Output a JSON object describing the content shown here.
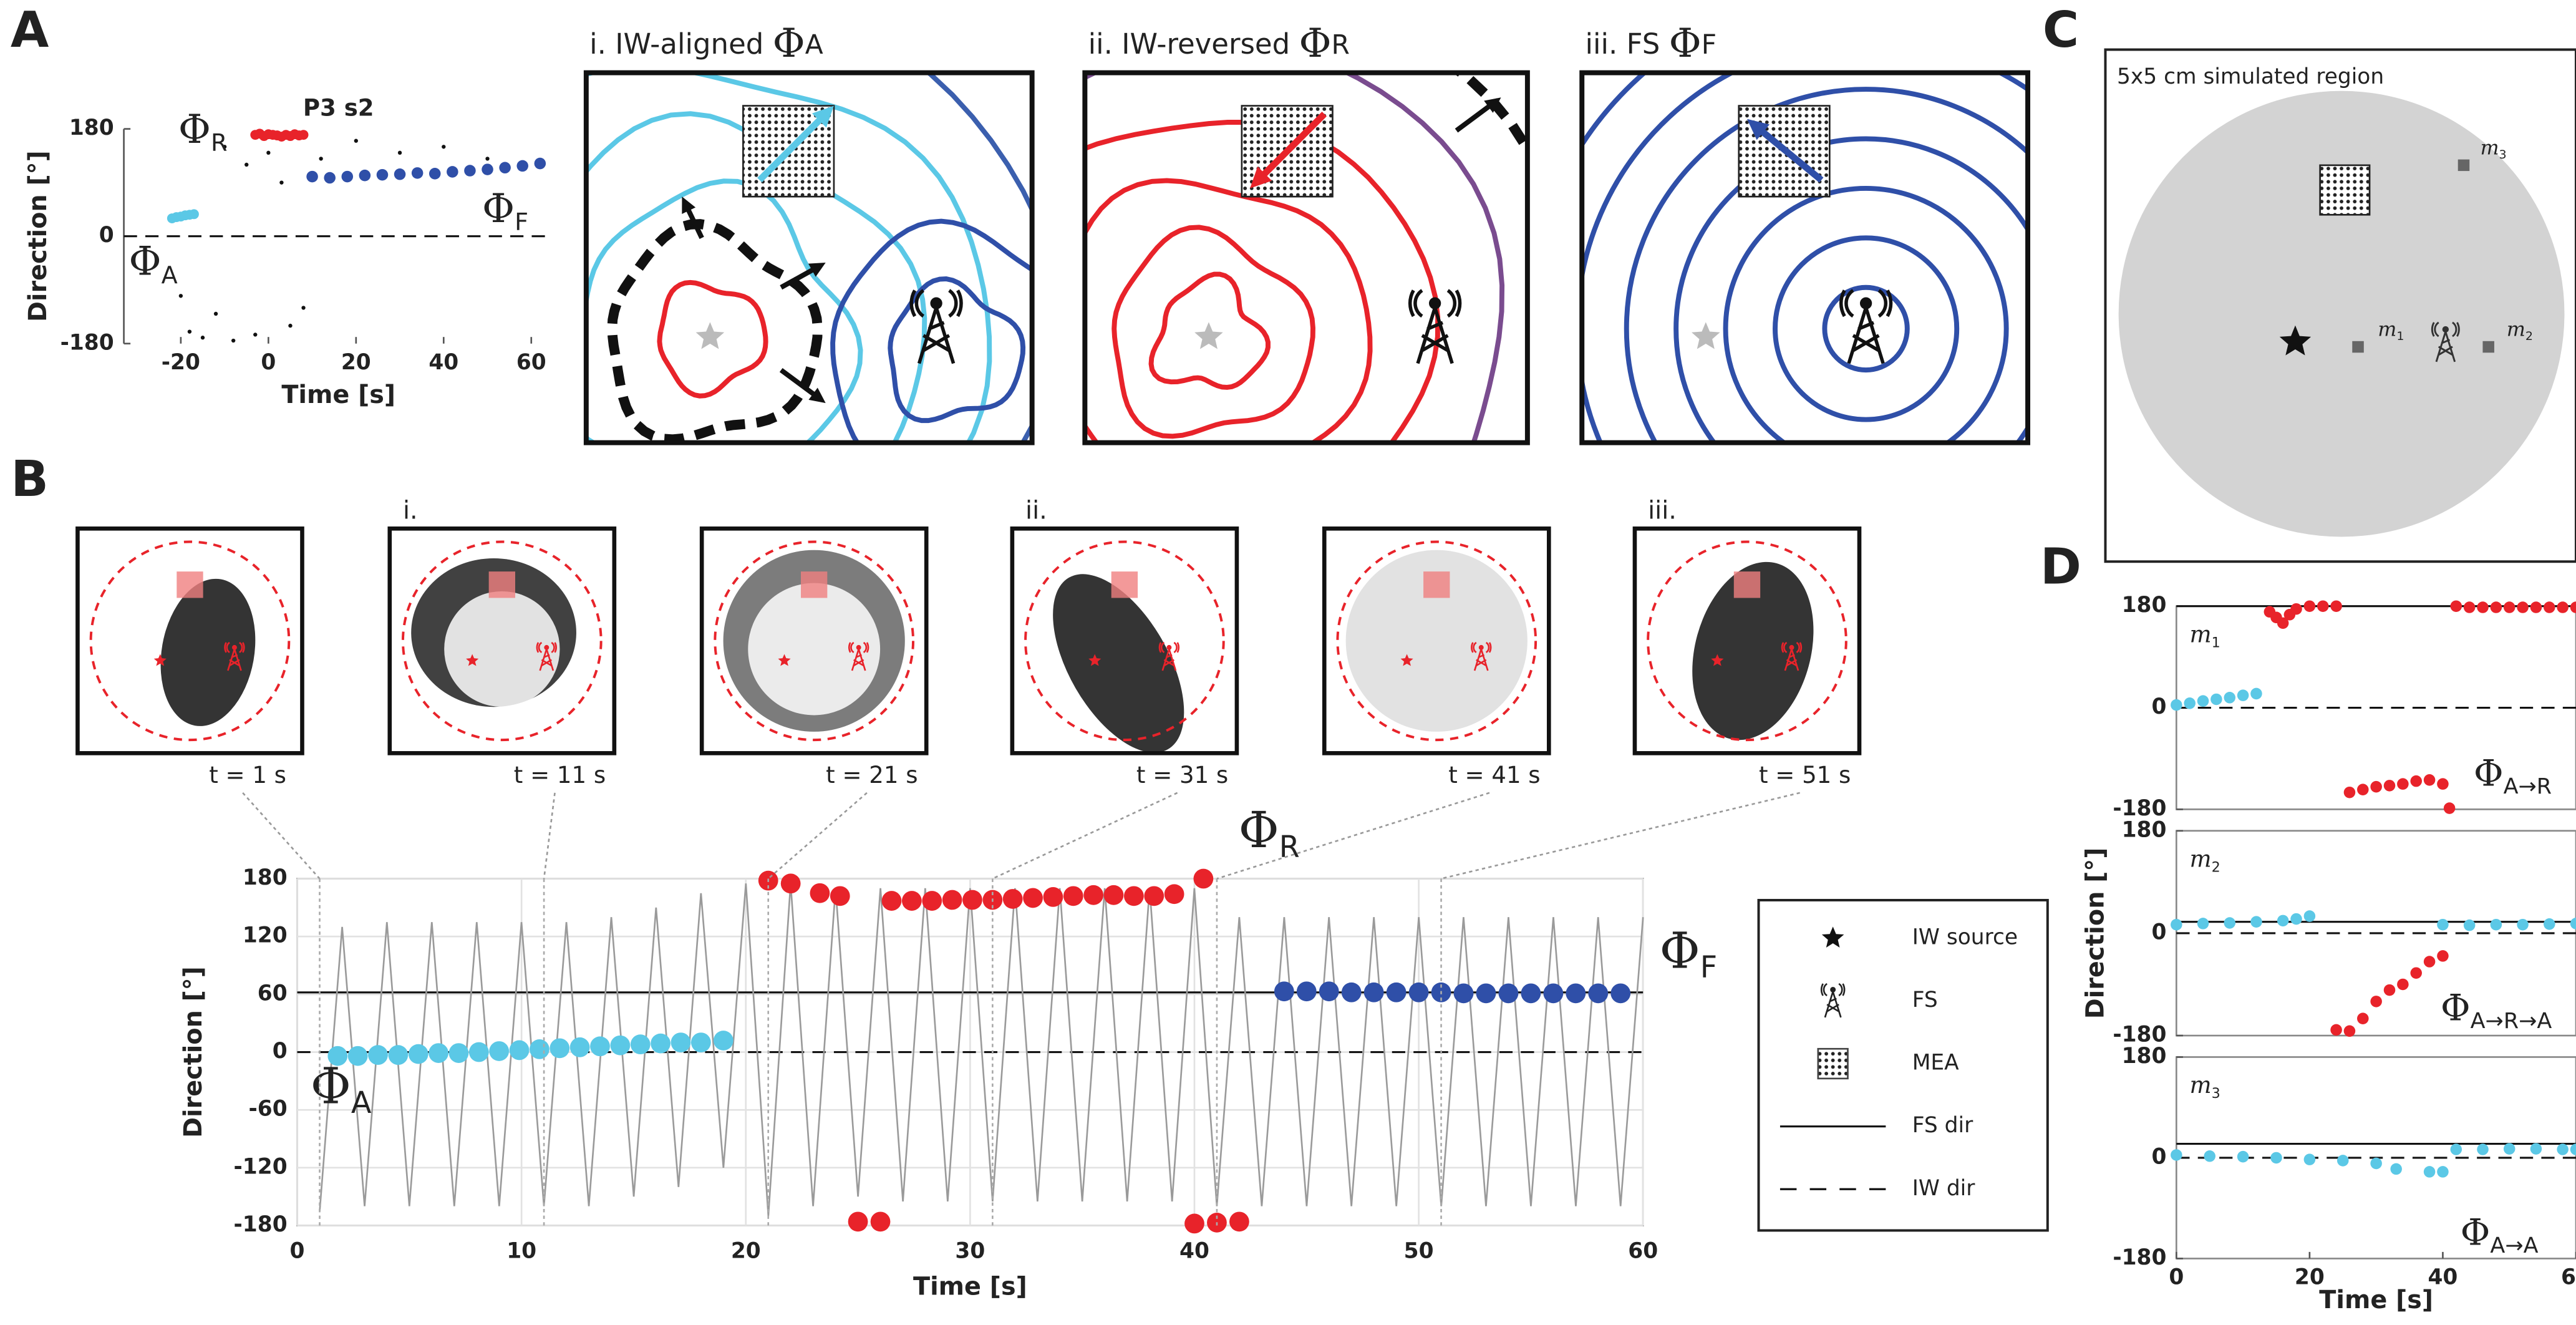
{
  "panel_labels": [
    "A",
    "B",
    "C",
    "D"
  ],
  "diagrams": [
    {
      "prefix": "i. IW-aligned ",
      "symbol": "Φ",
      "subscript": "A"
    },
    {
      "prefix": "ii. IW-reversed ",
      "symbol": "Φ",
      "subscript": "R"
    },
    {
      "prefix": "iii. FS ",
      "symbol": "Φ",
      "subscript": "F"
    }
  ],
  "region": {
    "title": "5x5 cm simulated region",
    "markers": [
      {
        "symbol": "m",
        "subscript": "1"
      },
      {
        "symbol": "m",
        "subscript": "2"
      },
      {
        "symbol": "m",
        "subscript": "3"
      }
    ]
  },
  "snapshots": {
    "headers": [
      "i.",
      "ii.",
      "iii."
    ],
    "times": [
      "t = 1 s",
      "t = 11 s",
      "t = 21 s",
      "t = 31 s",
      "t = 41 s",
      "t = 51 s"
    ]
  },
  "legend": {
    "items": [
      {
        "label": "IW source",
        "symbol": "star"
      },
      {
        "label": "FS",
        "symbol": "tower"
      },
      {
        "label": "MEA",
        "symbol": "grid"
      },
      {
        "label": "FS dir",
        "symbol": "solid"
      },
      {
        "label": "IW dir",
        "symbol": "dashed"
      }
    ]
  },
  "chart_data": [
    {
      "type": "scatter",
      "title": "P3 s2",
      "xlabel": "Time [s]",
      "ylabel": "Direction [°]",
      "xlim": [
        -33,
        65
      ],
      "ylim": [
        -180,
        180
      ],
      "xticks": [
        -20,
        0,
        20,
        40,
        60
      ],
      "yticks": [
        180,
        0,
        -180
      ],
      "reference_lines": [
        {
          "value": 0,
          "style": "dashed"
        }
      ],
      "annotations": [
        {
          "symbol": "Φ",
          "subscript": "R"
        },
        {
          "symbol": "Φ",
          "subscript": "F"
        },
        {
          "symbol": "Φ",
          "subscript": "A"
        }
      ],
      "series": [
        {
          "color": "#111111",
          "marker_size": 1.2,
          "x": [
            -10,
            -5,
            0,
            3,
            5,
            8,
            -15,
            -18,
            -12,
            -20,
            12,
            20,
            30,
            40,
            50,
            -8,
            -3
          ],
          "values": [
            150,
            120,
            140,
            90,
            -150,
            -120,
            -170,
            -160,
            -130,
            -100,
            130,
            160,
            140,
            150,
            130,
            -175,
            -165
          ]
        },
        {
          "color": "#5bc8e6",
          "marker_size": 3,
          "x": [
            -22,
            -21,
            -20,
            -19,
            -18,
            -17
          ],
          "values": [
            30,
            32,
            33,
            35,
            36,
            37
          ]
        },
        {
          "color": "#e8232a",
          "marker_size": 3,
          "x": [
            -3,
            -2,
            -1,
            0,
            1,
            2,
            3,
            4,
            5,
            6,
            7,
            8
          ],
          "values": [
            170,
            172,
            168,
            171,
            170,
            169,
            167,
            170,
            168,
            171,
            169,
            170
          ]
        },
        {
          "color": "#2f4fa8",
          "marker_size": 3.5,
          "x": [
            10,
            14,
            18,
            22,
            26,
            30,
            34,
            38,
            42,
            46,
            50,
            54,
            58,
            62
          ],
          "values": [
            100,
            98,
            100,
            102,
            103,
            104,
            106,
            105,
            108,
            110,
            112,
            115,
            118,
            122
          ]
        }
      ]
    },
    {
      "type": "scatter",
      "xlabel": "Time [s]",
      "ylabel": "Direction [°]",
      "xlim": [
        0,
        60
      ],
      "ylim": [
        -180,
        180
      ],
      "xticks": [
        0,
        10,
        20,
        30,
        40,
        50,
        60
      ],
      "yticks": [
        180,
        120,
        60,
        0,
        -60,
        -120,
        -180
      ],
      "grid": true,
      "reference_lines": [
        {
          "value": 62,
          "style": "solid"
        },
        {
          "value": 0,
          "style": "dashed"
        }
      ],
      "annotations": [
        {
          "symbol": "Φ",
          "subscript": "A"
        },
        {
          "symbol": "Φ",
          "subscript": "R"
        },
        {
          "symbol": "Φ",
          "subscript": "F"
        }
      ],
      "series": [
        {
          "color": "#9a9a9a",
          "style": "line",
          "x": [
            1,
            2,
            3,
            4,
            5,
            6,
            7,
            8,
            9,
            10,
            11,
            12,
            13,
            14,
            15,
            16,
            17,
            18,
            19,
            20,
            21,
            22,
            23,
            24,
            25,
            26,
            27,
            28,
            29,
            30,
            31,
            32,
            33,
            34,
            35,
            36,
            37,
            38,
            39,
            40,
            41,
            42,
            43,
            44,
            45,
            46,
            47,
            48,
            49,
            50,
            51,
            52,
            53,
            54,
            55,
            56,
            57,
            58,
            59,
            60
          ],
          "values": [
            -165,
            130,
            -160,
            135,
            -160,
            135,
            -160,
            135,
            -160,
            135,
            -160,
            135,
            -160,
            140,
            -150,
            150,
            -140,
            165,
            -120,
            175,
            -170,
            175,
            -160,
            170,
            -150,
            170,
            -155,
            170,
            -155,
            170,
            -155,
            170,
            -155,
            170,
            -155,
            170,
            -155,
            170,
            -155,
            170,
            -160,
            140,
            -160,
            140,
            -160,
            140,
            -160,
            140,
            -160,
            140,
            -160,
            140,
            -160,
            140,
            -160,
            140,
            -160,
            140,
            -160,
            140
          ]
        },
        {
          "color": "#5bc8e6",
          "marker_size": 6,
          "x": [
            1.8,
            2.7,
            3.6,
            4.5,
            5.4,
            6.3,
            7.2,
            8.1,
            9,
            9.9,
            10.8,
            11.7,
            12.6,
            13.5,
            14.4,
            15.3,
            16.2,
            17.1,
            18,
            19
          ],
          "values": [
            -4,
            -4,
            -3,
            -3,
            -2,
            -1,
            -1,
            0,
            1,
            2,
            3,
            4,
            5,
            6,
            7,
            8,
            9,
            10,
            10,
            12
          ]
        },
        {
          "color": "#e8232a",
          "marker_size": 6,
          "x": [
            21,
            22,
            23.3,
            24.2,
            26.5,
            27.4,
            28.3,
            29.2,
            30.1,
            31,
            31.9,
            32.8,
            33.7,
            34.6,
            35.5,
            36.4,
            37.3,
            38.2,
            39.1,
            40.4
          ],
          "values": [
            178,
            175,
            165,
            162,
            157,
            157,
            157,
            158,
            158,
            158,
            159,
            160,
            161,
            162,
            163,
            163,
            162,
            162,
            164,
            180
          ]
        },
        {
          "color": "#e8232a",
          "marker_size": 6,
          "x": [
            25,
            26,
            40,
            41,
            42
          ],
          "values": [
            -176,
            -176,
            -178,
            -177,
            -176
          ]
        },
        {
          "color": "#2f4fa8",
          "marker_size": 6,
          "x": [
            44,
            45,
            46,
            47,
            48,
            49,
            50,
            51,
            52,
            53,
            54,
            55,
            56,
            57,
            58,
            59
          ],
          "values": [
            63,
            63,
            63,
            62,
            62,
            62,
            62,
            62,
            61,
            61,
            61,
            61,
            61,
            61,
            61,
            61
          ]
        }
      ]
    },
    {
      "type": "scatter",
      "label": {
        "symbol": "m",
        "subscript": "1"
      },
      "xlim": [
        0,
        60
      ],
      "ylim": [
        -180,
        180
      ],
      "yticks": [
        180,
        0,
        -180
      ],
      "reference_lines": [
        {
          "value": 180,
          "style": "solid"
        },
        {
          "value": 0,
          "style": "dashed"
        }
      ],
      "annotations": [
        {
          "symbol": "Φ",
          "subscript": "A→R"
        }
      ],
      "series": [
        {
          "color": "#5bc8e6",
          "marker_size": 3.5,
          "x": [
            0,
            2,
            4,
            6,
            8,
            10,
            12
          ],
          "values": [
            5,
            8,
            12,
            15,
            18,
            22,
            25
          ]
        },
        {
          "color": "#e8232a",
          "marker_size": 3.5,
          "x": [
            14,
            15,
            16,
            17,
            18,
            20,
            22,
            24,
            42,
            44,
            46,
            48,
            50,
            52,
            54,
            56,
            58,
            60
          ],
          "values": [
            170,
            160,
            150,
            165,
            175,
            180,
            180,
            180,
            180,
            178,
            178,
            178,
            178,
            178,
            178,
            178,
            178,
            178
          ]
        },
        {
          "color": "#e8232a",
          "marker_size": 3.5,
          "x": [
            26,
            28,
            30,
            32,
            34,
            36,
            38,
            40,
            41
          ],
          "values": [
            -150,
            -145,
            -140,
            -138,
            -135,
            -130,
            -128,
            -135,
            -178
          ]
        }
      ]
    },
    {
      "type": "scatter",
      "label": {
        "symbol": "m",
        "subscript": "2"
      },
      "ylabel": "Direction [°]",
      "xlim": [
        0,
        60
      ],
      "ylim": [
        -180,
        180
      ],
      "yticks": [
        180,
        0,
        -180
      ],
      "reference_lines": [
        {
          "value": 20,
          "style": "solid"
        },
        {
          "value": 0,
          "style": "dashed"
        }
      ],
      "annotations": [
        {
          "symbol": "Φ",
          "subscript": "A→R→A"
        }
      ],
      "series": [
        {
          "color": "#5bc8e6",
          "marker_size": 3.5,
          "x": [
            0,
            4,
            8,
            12,
            16,
            18,
            20
          ],
          "values": [
            15,
            17,
            18,
            20,
            22,
            25,
            30
          ]
        },
        {
          "color": "#e8232a",
          "marker_size": 3.5,
          "x": [
            24,
            26,
            28,
            30,
            32,
            34,
            36,
            38,
            40
          ],
          "values": [
            -170,
            -172,
            -150,
            -120,
            -100,
            -90,
            -70,
            -50,
            -40
          ]
        },
        {
          "color": "#5bc8e6",
          "marker_size": 3.5,
          "x": [
            40,
            44,
            48,
            52,
            56,
            60
          ],
          "values": [
            15,
            14,
            15,
            15,
            16,
            17
          ]
        }
      ]
    },
    {
      "type": "scatter",
      "label": {
        "symbol": "m",
        "subscript": "3"
      },
      "xlabel": "Time [s]",
      "xlim": [
        0,
        60
      ],
      "ylim": [
        -180,
        180
      ],
      "xticks": [
        0,
        20,
        40,
        60
      ],
      "yticks": [
        180,
        0,
        -180
      ],
      "reference_lines": [
        {
          "value": 25,
          "style": "solid"
        },
        {
          "value": 0,
          "style": "dashed"
        }
      ],
      "annotations": [
        {
          "symbol": "Φ",
          "subscript": "A→A"
        }
      ],
      "series": [
        {
          "color": "#5bc8e6",
          "marker_size": 3.5,
          "x": [
            0,
            5,
            10,
            15,
            20,
            25,
            30,
            33,
            38,
            40,
            42,
            46,
            50,
            54,
            58,
            60
          ],
          "values": [
            5,
            3,
            2,
            0,
            -3,
            -5,
            -10,
            -20,
            -25,
            -25,
            15,
            15,
            16,
            16,
            15,
            15
          ]
        }
      ]
    }
  ]
}
